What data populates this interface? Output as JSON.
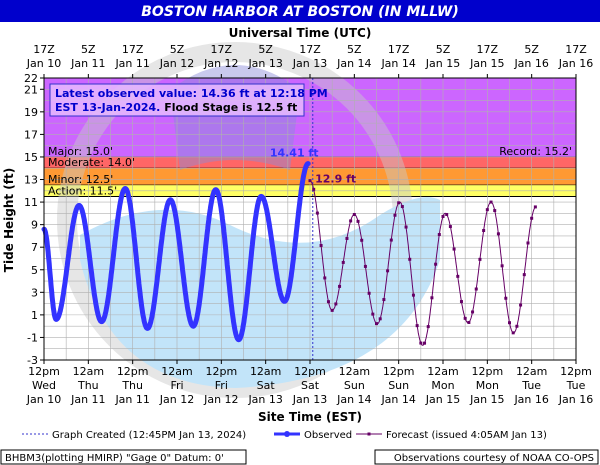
{
  "chart_data": {
    "type": "line",
    "title": "BOSTON HARBOR AT BOSTON (IN MLLW)",
    "top_axis_title": "Universal Time (UTC)",
    "xlabel": "Site Time (EST)",
    "ylabel": "Tide Height (ft)",
    "ylim": [
      -3,
      22
    ],
    "xlim_hours_from_jan10_noon_est": [
      0,
      144
    ],
    "y_ticks": [
      -3,
      -1,
      1,
      3,
      5,
      7,
      9,
      11,
      13,
      15,
      17,
      19,
      21,
      22
    ],
    "top_ticks": [
      {
        "h": 0,
        "l1": "17Z",
        "l2": "Jan 10"
      },
      {
        "h": 12,
        "l1": "5Z",
        "l2": "Jan 11"
      },
      {
        "h": 24,
        "l1": "17Z",
        "l2": "Jan 11"
      },
      {
        "h": 36,
        "l1": "5Z",
        "l2": "Jan 12"
      },
      {
        "h": 48,
        "l1": "17Z",
        "l2": "Jan 12"
      },
      {
        "h": 60,
        "l1": "5Z",
        "l2": "Jan 13"
      },
      {
        "h": 72,
        "l1": "17Z",
        "l2": "Jan 13"
      },
      {
        "h": 84,
        "l1": "5Z",
        "l2": "Jan 14"
      },
      {
        "h": 96,
        "l1": "17Z",
        "l2": "Jan 14"
      },
      {
        "h": 108,
        "l1": "5Z",
        "l2": "Jan 15"
      },
      {
        "h": 120,
        "l1": "17Z",
        "l2": "Jan 15"
      },
      {
        "h": 132,
        "l1": "5Z",
        "l2": "Jan 16"
      },
      {
        "h": 144,
        "l1": "17Z",
        "l2": "Jan 16"
      }
    ],
    "bottom_ticks": [
      {
        "h": 0,
        "l1": "12pm",
        "l2": "Wed",
        "l3": "Jan 10"
      },
      {
        "h": 12,
        "l1": "12am",
        "l2": "Thu",
        "l3": "Jan 11"
      },
      {
        "h": 24,
        "l1": "12pm",
        "l2": "Thu",
        "l3": "Jan 11"
      },
      {
        "h": 36,
        "l1": "12am",
        "l2": "Fri",
        "l3": "Jan 12"
      },
      {
        "h": 48,
        "l1": "12pm",
        "l2": "Fri",
        "l3": "Jan 12"
      },
      {
        "h": 60,
        "l1": "12am",
        "l2": "Sat",
        "l3": "Jan 13"
      },
      {
        "h": 72,
        "l1": "12pm",
        "l2": "Sat",
        "l3": "Jan 13"
      },
      {
        "h": 84,
        "l1": "12am",
        "l2": "Sun",
        "l3": "Jan 14"
      },
      {
        "h": 96,
        "l1": "12pm",
        "l2": "Sun",
        "l3": "Jan 14"
      },
      {
        "h": 108,
        "l1": "12am",
        "l2": "Mon",
        "l3": "Jan 15"
      },
      {
        "h": 120,
        "l1": "12pm",
        "l2": "Mon",
        "l3": "Jan 15"
      },
      {
        "h": 132,
        "l1": "12am",
        "l2": "Tue",
        "l3": "Jan 16"
      },
      {
        "h": 144,
        "l1": "12pm",
        "l2": "Tue",
        "l3": "Jan 16"
      }
    ],
    "flood_categories": [
      {
        "name": "Major",
        "label": "Major: 15.0'",
        "from": 15.0,
        "to": 22,
        "color": "#cc66ff"
      },
      {
        "name": "Moderate",
        "label": "Moderate: 14.0'",
        "from": 14.0,
        "to": 15.0,
        "color": "#ff6666"
      },
      {
        "name": "Minor",
        "label": "Minor: 12.5'",
        "from": 12.5,
        "to": 14.0,
        "color": "#ff9933"
      },
      {
        "name": "Action",
        "label": "Action: 11.5'",
        "from": 11.5,
        "to": 12.5,
        "color": "#ffff66"
      }
    ],
    "record_label": "Record: 15.2'",
    "latest_box": {
      "line1": "Latest observed value: 14.36 ft at 12:18 PM",
      "line2a": "EST 13-Jan-2024.",
      "line2b": "Flood Stage is 12.5 ft"
    },
    "graph_created_hour": 72.75,
    "observed_peak": {
      "h": 71.5,
      "v": 14.41,
      "label": "14.41 ft"
    },
    "forecast_peak": {
      "h": 72.3,
      "v": 12.9,
      "label": "12.9 ft"
    },
    "observed_extrema": [
      {
        "h": 0,
        "v": 8.6
      },
      {
        "h": 3.3,
        "v": 0.6
      },
      {
        "h": 9.5,
        "v": 10.7
      },
      {
        "h": 15.6,
        "v": 0.4
      },
      {
        "h": 22.0,
        "v": 12.2
      },
      {
        "h": 28.0,
        "v": -0.2
      },
      {
        "h": 34.2,
        "v": 11.2
      },
      {
        "h": 40.4,
        "v": 0.0
      },
      {
        "h": 46.5,
        "v": 12.1
      },
      {
        "h": 52.7,
        "v": -1.2
      },
      {
        "h": 58.8,
        "v": 11.5
      },
      {
        "h": 65.1,
        "v": 2.2
      },
      {
        "h": 71.5,
        "v": 14.41
      }
    ],
    "forecast_extrema": [
      {
        "h": 72.0,
        "v": 12.9
      },
      {
        "h": 78.0,
        "v": 1.4
      },
      {
        "h": 84.0,
        "v": 9.9
      },
      {
        "h": 90.2,
        "v": 0.2
      },
      {
        "h": 96.3,
        "v": 11.0
      },
      {
        "h": 102.5,
        "v": -1.7
      },
      {
        "h": 108.6,
        "v": 10.0
      },
      {
        "h": 114.8,
        "v": 0.3
      },
      {
        "h": 121.0,
        "v": 11.0
      },
      {
        "h": 127.1,
        "v": -0.6
      },
      {
        "h": 133.2,
        "v": 10.6
      }
    ],
    "legend": {
      "graph_created": "Graph Created (12:45PM Jan 13, 2024)",
      "observed": "Observed",
      "forecast": "Forecast (issued 4:05AM Jan 13)"
    },
    "footer_left": "BHBM3(plotting HMIRP) \"Gage 0\" Datum: 0'",
    "footer_right": "Observations courtesy of NOAA CO-OPS",
    "colors": {
      "title_bg": "#0000cc",
      "observed": "#3333ff",
      "forecast": "#660066",
      "grid": "#b0b0b0",
      "plot_bg": "#ffffff",
      "watermark": "#b8e0f8"
    }
  }
}
